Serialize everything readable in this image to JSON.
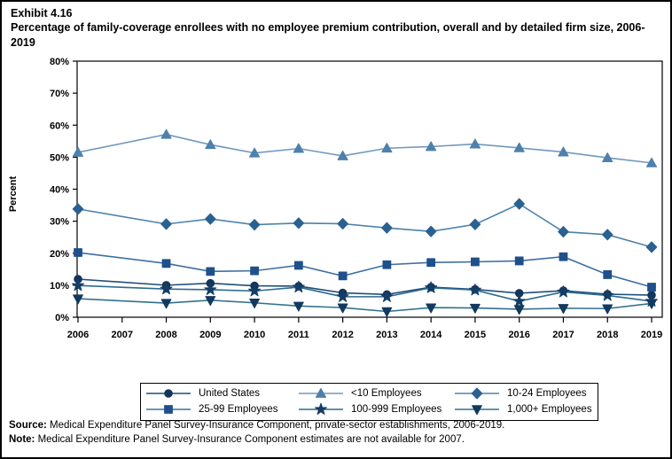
{
  "header": {
    "exhibit_label": "Exhibit 4.16",
    "title": "Percentage of family-coverage enrollees with no employee premium contribution, overall and by detailed firm size, 2006-2019"
  },
  "footer": {
    "source_label": "Source:",
    "source_text": " Medical Expenditure Panel Survey-Insurance Component, private-sector establishments, 2006-2019.",
    "note_label": "Note:",
    "note_text": " Medical Expenditure Panel Survey-Insurance Component estimates are not available for 2007."
  },
  "chart_data": {
    "type": "line",
    "ylabel": "Percent",
    "ylim": [
      0,
      80
    ],
    "ytick_step": 10,
    "ytick_suffix": "%",
    "grid": false,
    "legend_position": "bottom",
    "x": [
      2006,
      2007,
      2008,
      2009,
      2010,
      2011,
      2012,
      2013,
      2014,
      2015,
      2016,
      2017,
      2018,
      2019
    ],
    "series": [
      {
        "name": "United States",
        "marker": "circle",
        "marker_color": "#14355A",
        "line_color": "#1F4E79",
        "values": [
          11.9,
          null,
          10.0,
          10.6,
          9.8,
          9.7,
          7.6,
          7.1,
          9.4,
          8.7,
          7.5,
          8.3,
          7.2,
          6.9
        ]
      },
      {
        "name": "<10 Employees",
        "marker": "triangle-up",
        "marker_color": "#4E80AC",
        "line_color": "#7298BE",
        "values": [
          51.5,
          null,
          57.1,
          53.9,
          51.3,
          52.7,
          50.4,
          52.8,
          53.3,
          54.1,
          52.9,
          51.6,
          49.8,
          48.2
        ]
      },
      {
        "name": "10-24 Employees",
        "marker": "diamond",
        "marker_color": "#2B6191",
        "line_color": "#4D82AB",
        "values": [
          33.8,
          null,
          29.1,
          30.7,
          28.9,
          29.4,
          29.2,
          27.9,
          26.8,
          29.0,
          35.4,
          26.7,
          25.8,
          21.9
        ]
      },
      {
        "name": "25-99 Employees",
        "marker": "square",
        "marker_color": "#20508B",
        "line_color": "#3E6FA5",
        "values": [
          20.2,
          null,
          16.8,
          14.3,
          14.5,
          16.2,
          12.9,
          16.4,
          17.1,
          17.3,
          17.6,
          18.9,
          13.3,
          9.4
        ]
      },
      {
        "name": "100-999 Employees",
        "marker": "star",
        "marker_color": "#153E66",
        "line_color": "#2E6B8F",
        "values": [
          9.9,
          null,
          8.8,
          8.6,
          8.2,
          9.4,
          6.4,
          6.4,
          9.2,
          8.5,
          5.0,
          7.9,
          6.8,
          5.0
        ]
      },
      {
        "name": "1,000+ Employees",
        "marker": "triangle-down",
        "marker_color": "#133A5E",
        "line_color": "#33708F",
        "values": [
          5.8,
          null,
          4.4,
          5.3,
          4.5,
          3.5,
          3.0,
          1.8,
          3.0,
          2.9,
          2.5,
          2.8,
          2.7,
          4.3
        ]
      }
    ]
  }
}
